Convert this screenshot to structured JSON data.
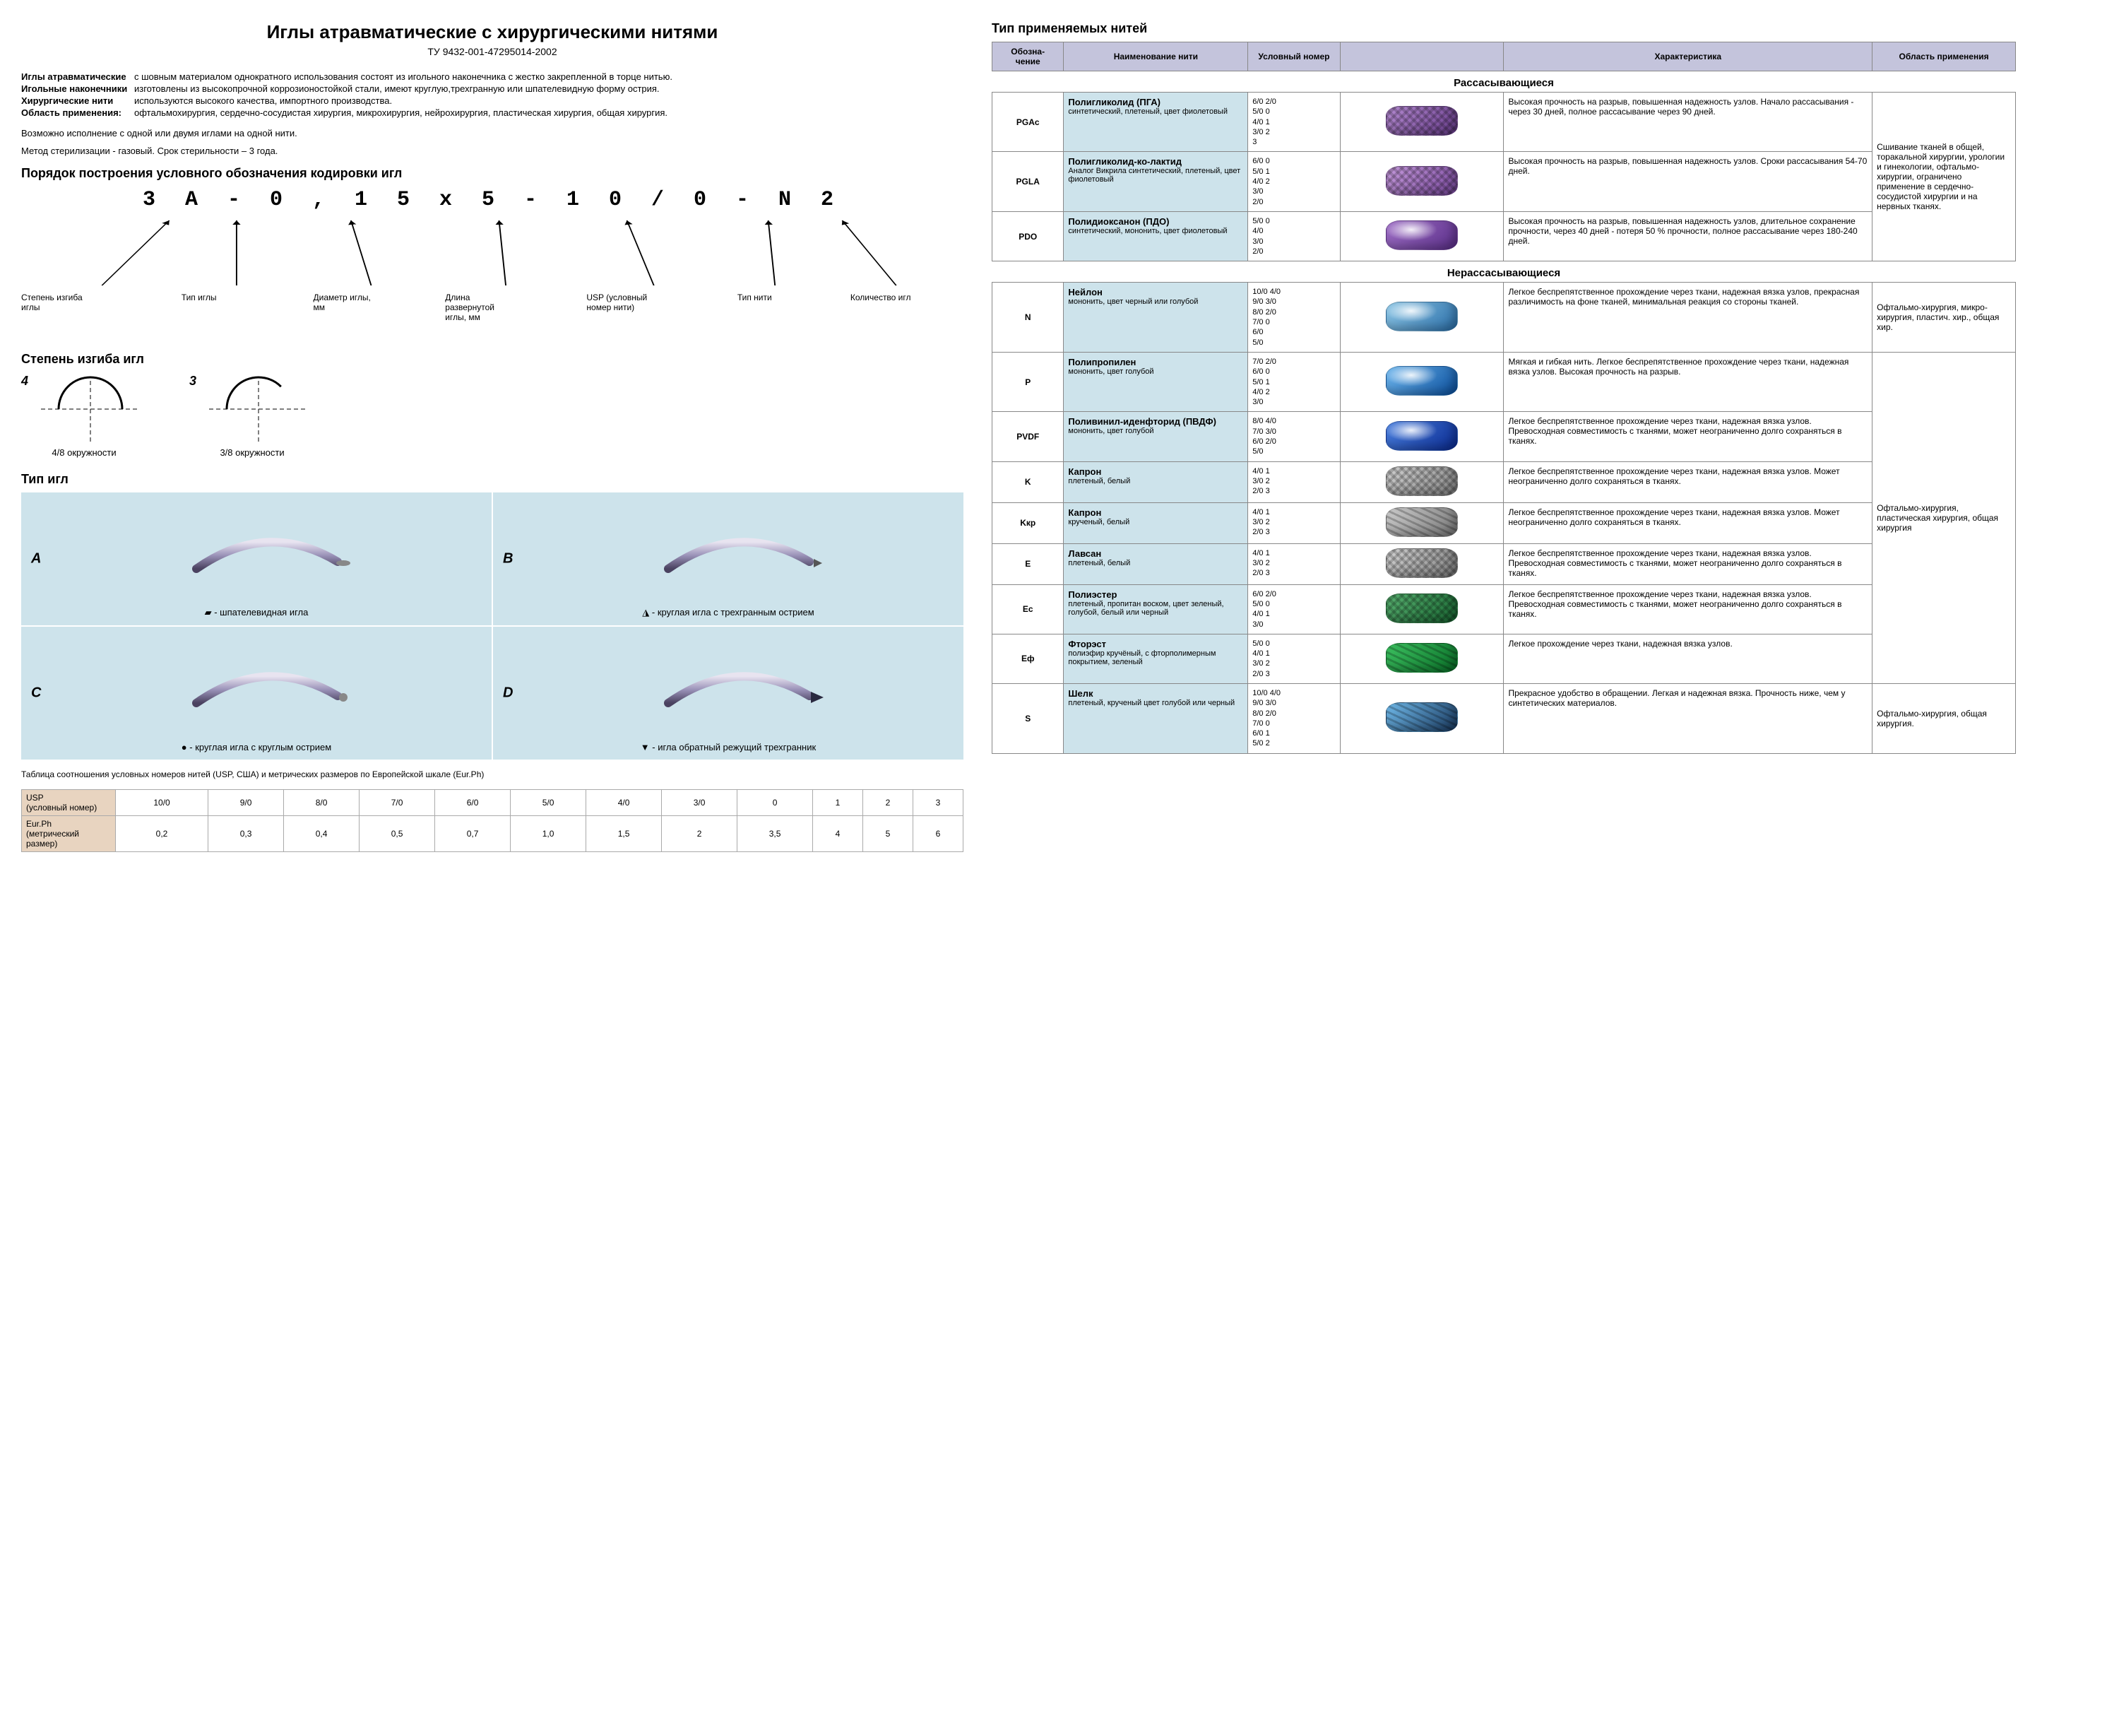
{
  "title": "Иглы атравматические с хирургическими нитями",
  "spec": "ТУ 9432-001-47295014-2002",
  "definitions": [
    {
      "term": "Иглы атравматические",
      "body": "с шовным материалом однократного использования состоят из игольного наконечника с жестко закрепленной в торце нитью."
    },
    {
      "term": "Игольные наконечники",
      "body": "изготовлены из высокопрочной коррозионостойкой стали, имеют круглую,трехгранную или шпателевидную форму острия."
    },
    {
      "term": "Хирургические нити",
      "body": "используются высокого качества, импортного производства."
    },
    {
      "term": "Область применения:",
      "body": "офтальмохирургия, сердечно-сосудистая хирургия, микрохирургия, нейрохирургия, пластическая хирургия, общая хирургия."
    }
  ],
  "notes": [
    "Возможно исполнение с одной или двумя иглами на одной нити.",
    "Метод стерилизации - газовый. Срок стерильности – 3 года."
  ],
  "coding": {
    "heading": "Порядок построения условного обозначения кодировки игл",
    "code": "3 А - 0 , 1 5 х 5 - 1 0 / 0 - N 2",
    "labels": [
      "Степень изгиба иглы",
      "Тип иглы",
      "Диаметр иглы, мм",
      "Длина развернутой иглы, мм",
      "USP (условный номер нити)",
      "Тип нити",
      "Количество игл"
    ]
  },
  "curvature": {
    "heading": "Степень изгиба игл",
    "items": [
      {
        "num": "4",
        "caption": "4/8 окружности",
        "sweep": 180
      },
      {
        "num": "3",
        "caption": "3/8 окружности",
        "sweep": 135
      }
    ]
  },
  "needle_types": {
    "heading": "Тип игл",
    "cells": [
      {
        "letter": "A",
        "symbol": "▰",
        "caption": "- шпателевидная игла",
        "variant": "spatula"
      },
      {
        "letter": "B",
        "symbol": "◮",
        "caption": "- круглая игла с трехгранным острием",
        "variant": "round-tri"
      },
      {
        "letter": "C",
        "symbol": "●",
        "caption": "- круглая игла с круглым острием",
        "variant": "round"
      },
      {
        "letter": "D",
        "symbol": "▼",
        "caption": "- игла обратный режущий трехгранник",
        "variant": "reverse"
      }
    ]
  },
  "usp": {
    "caption": "Таблица соотношения условных номеров нитей (USP, США) и метрических размеров по Европейской шкале (Eur.Ph)",
    "rowheads": [
      "USP\n(условный номер)",
      "Eur.Ph\n(метрический размер)"
    ],
    "usp_row": [
      "10/0",
      "9/0",
      "8/0",
      "7/0",
      "6/0",
      "5/0",
      "4/0",
      "3/0",
      "0",
      "1",
      "2",
      "3"
    ],
    "eurph_row": [
      "0,2",
      "0,3",
      "0,4",
      "0,5",
      "0,7",
      "1,0",
      "1,5",
      "2",
      "3,5",
      "4",
      "5",
      "6"
    ]
  },
  "threads": {
    "heading": "Тип применяемых нитей",
    "columns": [
      "Обозна-\nчение",
      "Наименование нити",
      "Условный номер",
      "",
      "Характеристика",
      "Область применения"
    ],
    "sections": [
      {
        "title": "Рассасывающиеся",
        "area": "Сшивание тканей в общей, торакальной хирургии, урологии и гинекологии, офтальмо-хирургии, ограничено применение в сердечно-сосудистой хирургии и на нервных тканях.",
        "area_rowspan": 3,
        "rows": [
          {
            "code": "PGAc",
            "name_t": "Полигликолид (ПГА)",
            "name_s": "синтетический, плетеный, цвет фиолетовый",
            "nums": "6/0  2/0\n5/0  0\n4/0  1\n3/0  2\n       3",
            "char": "Высокая прочность на разрыв, повышенная надежность узлов. Начало рассасывания - через 30 дней, полное рассасывание через 90 дней.",
            "swatch": {
              "style": "braided",
              "c1": "#b48ad0",
              "c2": "#6a3e8e"
            }
          },
          {
            "code": "PGLA",
            "name_t": "Полигликолид-ко-лактид",
            "name_s": "Аналог Викрила синтетический, плетеный, цвет фиолетовый",
            "nums": "6/0  0\n5/0  1\n4/0  2\n3/0\n2/0",
            "char": "Высокая прочность на разрыв, повышенная надежность узлов. Сроки рассасывания 54-70 дней.",
            "swatch": {
              "style": "braided",
              "c1": "#c59adb",
              "c2": "#7b4aa0"
            }
          },
          {
            "code": "PDO",
            "name_t": "Полидиоксанон (ПДО)",
            "name_s": "синтетический, мононить, цвет фиолетовый",
            "nums": "5/0  0\n4/0\n3/0\n2/0",
            "char": "Высокая прочность на разрыв, повышенная надежность узлов, длительное сохранение прочности, через 40 дней - потеря 50 % прочности, полное рассасывание через 180-240 дней.",
            "swatch": {
              "style": "mono",
              "c1": "#a070c8",
              "c2": "#5a2e88"
            }
          }
        ]
      },
      {
        "title": "Нерассасывающиеся",
        "rows": [
          {
            "code": "N",
            "name_t": "Нейлон",
            "name_s": "мононить, цвет черный или голубой",
            "nums": "10/0 4/0\n9/0  3/0\n8/0  2/0\n7/0  0\n6/0\n5/0",
            "char": "Легкое беспрепятственное прохождение через ткани, надежная вязка узлов, прекрасная различимость на фоне тканей, минимальная реакция со стороны тканей.",
            "area": "Офтальмо-хирургия, микро-хирургия, пластич. хир., общая хир.",
            "swatch": {
              "style": "mono",
              "c1": "#8ec8e8",
              "c2": "#2a6ea8"
            }
          },
          {
            "code": "P",
            "name_t": "Полипропилен",
            "name_s": "мононить, цвет голубой",
            "nums": "7/0  2/0\n6/0  0\n5/0  1\n4/0  2\n3/0",
            "char": "Мягкая и гибкая нить. Легкое беспрепятственное прохождение через ткани, надежная вязка узлов. Высокая прочность на разрыв.",
            "area_rowspan": 7,
            "area": "Офтальмо-хирургия, пластическая хирургия, общая хирургия",
            "swatch": {
              "style": "mono",
              "c1": "#6fb8f0",
              "c2": "#0a4e9c"
            }
          },
          {
            "code": "PVDF",
            "name_t": "Поливинил-иденфторид (ПВДФ)",
            "name_s": "мононить, цвет голубой",
            "nums": "8/0  4/0\n7/0  3/0\n6/0  2/0\n5/0",
            "char": "Легкое беспрепятственное прохождение через ткани, надежная вязка узлов. Превосходная совместимость с тканями, может неограниченно долго сохраняться в тканях.",
            "swatch": {
              "style": "mono",
              "c1": "#4a80e0",
              "c2": "#0a2a90"
            }
          },
          {
            "code": "K",
            "name_t": "Капрон",
            "name_s": "плетеный, белый",
            "nums": "4/0  1\n3/0  2\n2/0  3",
            "char": "Легкое беспрепятственное прохождение через ткани, надежная вязка узлов. Может неограниченно долго сохраняться в тканях.",
            "swatch": {
              "style": "braided",
              "c1": "#d0d0d0",
              "c2": "#888888"
            }
          },
          {
            "code": "Kкр",
            "name_t": "Капрон",
            "name_s": "крученый, белый",
            "nums": "4/0  1\n3/0  2\n2/0  3",
            "char": "Легкое беспрепятственное прохождение через ткани, надежная вязка узлов. Может неограниченно долго сохраняться в тканях.",
            "swatch": {
              "style": "twisted",
              "c1": "#cccccc",
              "c2": "#777777"
            }
          },
          {
            "code": "E",
            "name_t": "Лавсан",
            "name_s": "плетеный, белый",
            "nums": "4/0  1\n3/0  2\n2/0  3",
            "char": "Легкое беспрепятственное прохождение через ткани, надежная вязка узлов. Превосходная совместимость с тканями, может неограниченно долго сохраняться в тканях.",
            "swatch": {
              "style": "braided",
              "c1": "#d4d4d4",
              "c2": "#808080"
            }
          },
          {
            "code": "Ec",
            "name_t": "Полиэстер",
            "name_s": "плетеный, пропитан воском, цвет зеленый, голубой, белый или черный",
            "nums": "6/0  2/0\n5/0  0\n4/0  1\n3/0",
            "char": "Легкое беспрепятственное прохождение через ткани, надежная вязка узлов. Превосходная совместимость с тканями, может неограниченно долго сохраняться в тканях.",
            "swatch": {
              "style": "braided",
              "c1": "#58b070",
              "c2": "#1a6a34"
            }
          },
          {
            "code": "Eф",
            "name_t": "Фторэст",
            "name_s": "полиэфир кручёный, с фторполимерным покрытием, зеленый",
            "nums": "5/0  0\n4/0  1\n3/0  2\n2/0  3",
            "char": "Легкое прохождение через ткани, надежная вязка узлов.",
            "swatch": {
              "style": "twisted",
              "c1": "#3cc060",
              "c2": "#0a7028"
            }
          },
          {
            "code": "S",
            "name_t": "Шелк",
            "name_s": "плетеный, крученый цвет голубой или черный",
            "nums": "10/0 4/0\n9/0  3/0\n8/0  2/0\n7/0  0\n6/0  1\n5/0  2",
            "char": "Прекрасное удобство в обращении. Легкая и надежная вязка. Прочность ниже, чем у синтетических материалов.",
            "area": "Офтальмо-хирургия, общая хирургия.",
            "swatch": {
              "style": "twisted",
              "c1": "#6fb8e8",
              "c2": "#1a3a60"
            }
          }
        ]
      }
    ]
  }
}
